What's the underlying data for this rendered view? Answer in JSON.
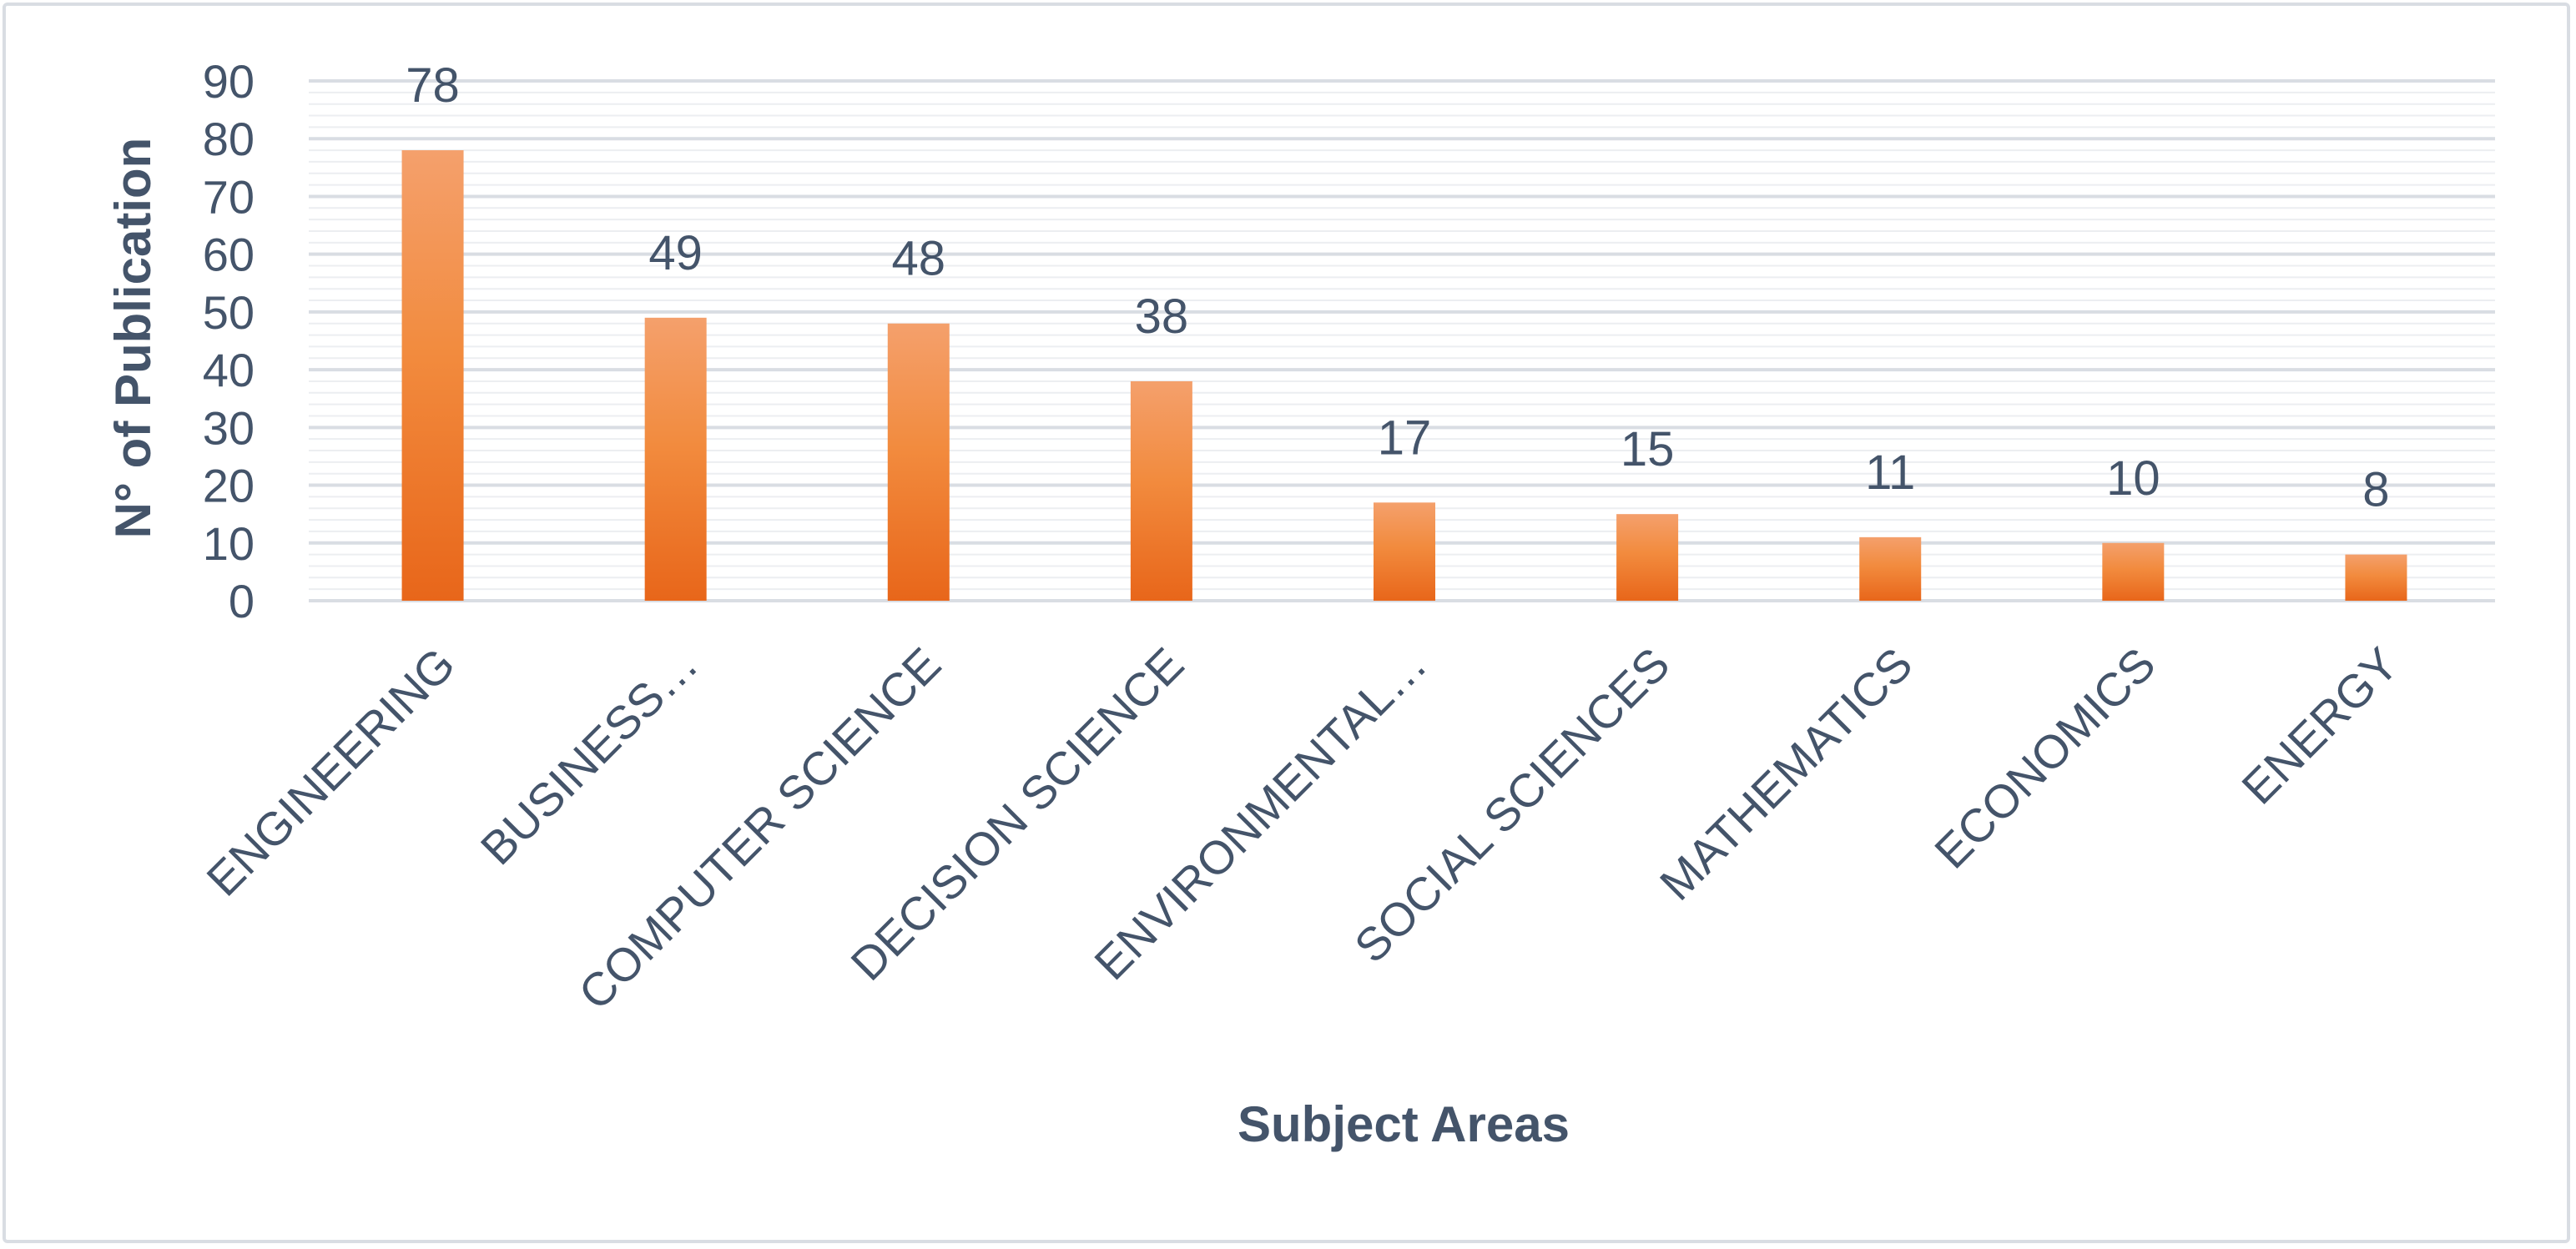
{
  "chart_data": {
    "type": "bar",
    "title": "",
    "xlabel": "Subject Areas",
    "ylabel": "N° of Publication",
    "ylim": [
      0,
      90
    ],
    "yticks": [
      0,
      10,
      20,
      30,
      40,
      50,
      60,
      70,
      80,
      90
    ],
    "grid": true,
    "legend": "none",
    "categories": [
      "ENGINEERING",
      "BUSINESS…",
      "COMPUTER SCIENCE",
      "DECISION SCIENCE",
      "ENVIRONMENTAL…",
      "SOCIAL SCIENCES",
      "MATHEMATICS",
      "ECONOMICS",
      "ENERGY"
    ],
    "values": [
      78,
      49,
      48,
      38,
      17,
      15,
      11,
      10,
      8
    ],
    "colors": {
      "bar_top": "#f4a06c",
      "bar_bottom": "#e8661a",
      "text": "#44546a",
      "gridline": "#d9dde3",
      "minor_gridline": "#eceef1",
      "frame": "#d9dde3"
    }
  }
}
